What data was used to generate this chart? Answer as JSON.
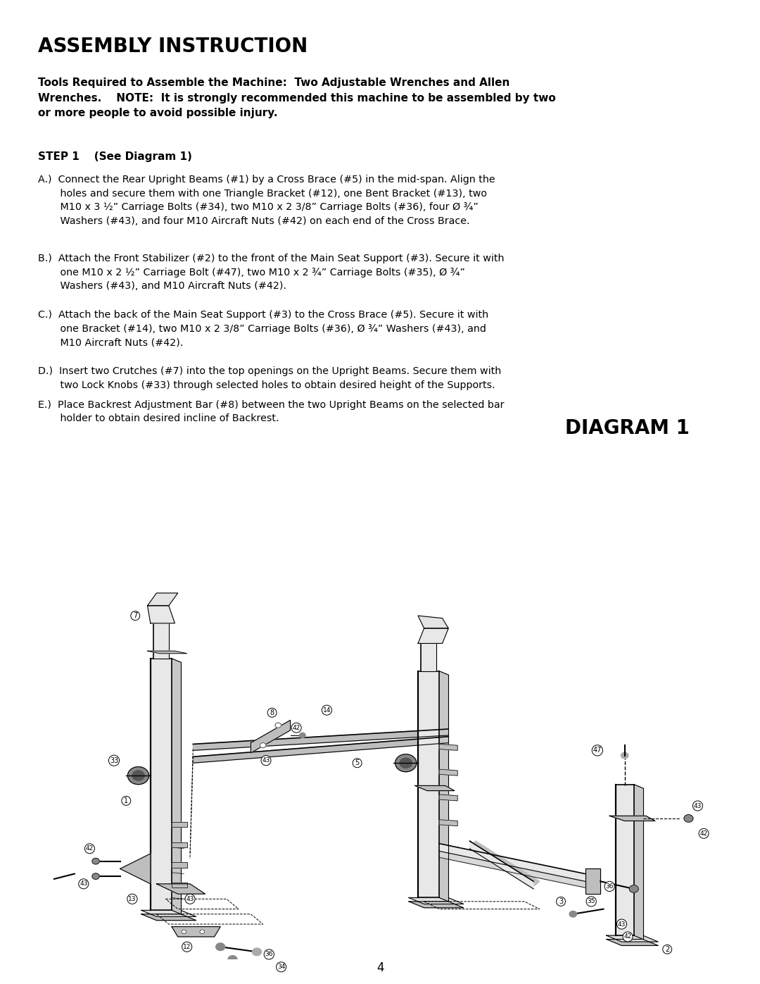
{
  "bg_color": "#ffffff",
  "title": "ASSEMBLY INSTRUCTION",
  "tools_text": "Tools Required to Assemble the Machine:  Two Adjustable Wrenches and Allen\nWrenches.    NOTE:  It is strongly recommended this machine to be assembled by two\nor more people to avoid possible injury.",
  "step1_header": "STEP 1    (See Diagram 1)",
  "step_A": "A.)  Connect the Rear Upright Beams (#1) by a Cross Brace (#5) in the mid-span. Align the\n       holes and secure them with one Triangle Bracket (#12), one Bent Bracket (#13), two\n       M10 x 3 ½” Carriage Bolts (#34), two M10 x 2 3/8” Carriage Bolts (#36), four Ø ¾”\n       Washers (#43), and four M10 Aircraft Nuts (#42) on each end of the Cross Brace.",
  "step_B": "B.)  Attach the Front Stabilizer (#2) to the front of the Main Seat Support (#3). Secure it with\n       one M10 x 2 ½” Carriage Bolt (#47), two M10 x 2 ¾” Carriage Bolts (#35), Ø ¾”\n       Washers (#43), and M10 Aircraft Nuts (#42).",
  "step_C": "C.)  Attach the back of the Main Seat Support (#3) to the Cross Brace (#5). Secure it with\n       one Bracket (#14), two M10 x 2 3/8” Carriage Bolts (#36), Ø ¾” Washers (#43), and\n       M10 Aircraft Nuts (#42).",
  "step_D": "D.)  Insert two Crutches (#7) into the top openings on the Upright Beams. Secure them with\n       two Lock Knobs (#33) through selected holes to obtain desired height of the Supports.",
  "step_E": "E.)  Place Backrest Adjustment Bar (#8) between the two Upright Beams on the selected bar\n       holder to obtain desired incline of Backrest.",
  "diagram_label": "DIAGRAM 1",
  "page_number": "4"
}
